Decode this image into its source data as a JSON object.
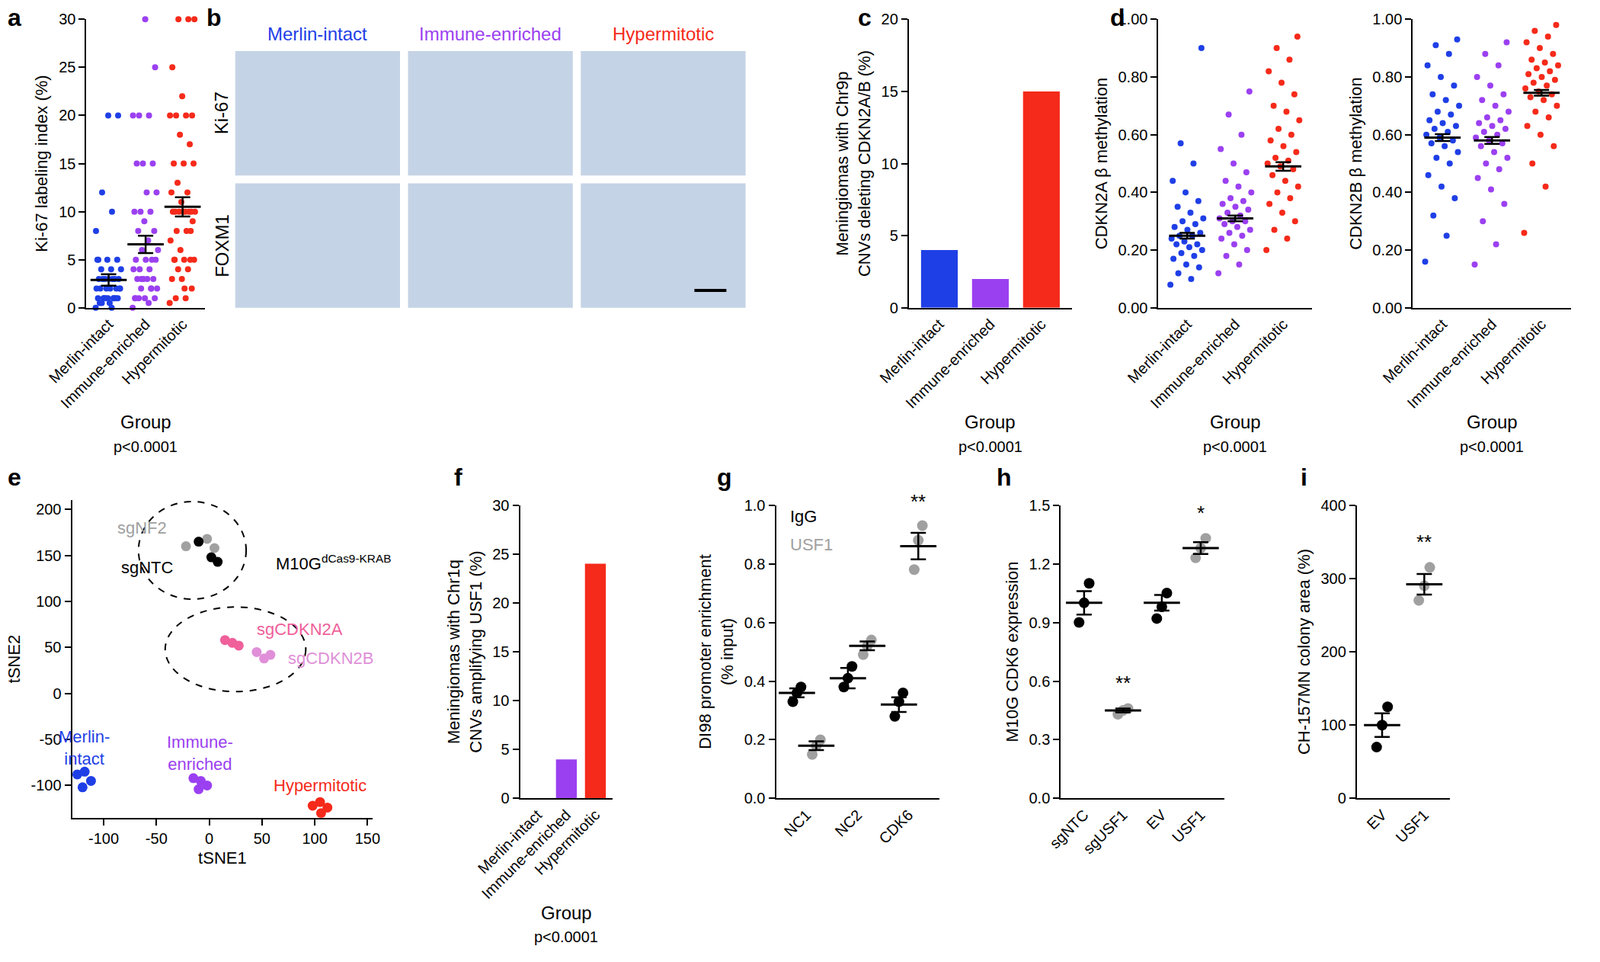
{
  "chart_data": [
    {
      "panel": "a",
      "type": "dot",
      "categories": [
        "Merlin-intact",
        "Immune-enriched",
        "Hypermitotic"
      ],
      "colors": [
        "#1f3fe6",
        "#9b40f0",
        "#f52a1a"
      ],
      "ylabel": "Ki-67 labeling index (%)",
      "xlabel": "Group",
      "note": "p<0.0001",
      "ylim": [
        0,
        30
      ],
      "yticks": [
        0,
        5,
        10,
        15,
        20,
        25,
        30
      ],
      "grid": false,
      "values": [
        [
          0,
          0,
          0.5,
          1,
          1,
          1,
          1,
          1,
          2,
          2,
          2,
          2,
          2,
          2,
          3,
          3,
          3,
          3,
          3,
          3,
          3,
          4,
          4,
          4,
          5,
          5,
          5,
          1,
          1,
          2,
          0.5,
          0.5,
          1,
          1,
          8,
          10,
          12,
          20,
          20,
          5
        ],
        [
          0,
          0.5,
          1,
          1,
          1,
          1,
          2,
          2,
          2,
          3,
          3,
          3,
          3,
          4,
          4,
          4,
          5,
          5,
          5,
          5,
          6,
          6,
          7,
          8,
          8,
          9,
          10,
          10,
          10,
          12,
          12,
          15,
          15,
          15,
          20,
          20,
          20,
          25,
          30,
          1,
          2,
          3
        ],
        [
          0.5,
          1,
          1,
          2,
          3,
          3,
          4,
          4,
          5,
          5,
          5,
          5,
          6,
          7,
          8,
          8,
          9,
          10,
          10,
          10,
          10,
          10,
          10,
          10,
          10,
          11,
          12,
          12,
          13,
          15,
          15,
          15,
          17,
          18,
          20,
          20,
          20,
          20,
          22,
          25,
          30,
          30,
          30,
          2,
          5,
          8
        ]
      ],
      "mean": [
        2.9,
        6.6,
        10.5
      ],
      "sem": [
        0.6,
        0.9,
        1.0
      ]
    },
    {
      "panel": "b",
      "type": "image_grid",
      "columns": [
        "Merlin-intact",
        "Immune-enriched",
        "Hypermitotic"
      ],
      "colors": [
        "#1f3fe6",
        "#9b40f0",
        "#f52a1a"
      ],
      "rows": [
        "Ki-67",
        "FOXM1"
      ]
    },
    {
      "panel": "c",
      "type": "bar",
      "categories": [
        "Merlin-intact",
        "Immune-enriched",
        "Hypermitotic"
      ],
      "colors": [
        "#1f3fe6",
        "#9b40f0",
        "#f52a1a"
      ],
      "values": [
        4,
        2,
        15
      ],
      "ylabel": [
        "Meningiomas with Chr9p",
        "CNVs deleting CDKN2A/B (%)"
      ],
      "xlabel": "Group",
      "note": "p<0.0001",
      "ylim": [
        0,
        20
      ],
      "yticks": [
        0,
        5,
        10,
        15,
        20
      ],
      "grid": false
    },
    {
      "panel": "d",
      "type": "dot",
      "categories": [
        "Merlin-intact",
        "Immune-enriched",
        "Hypermitotic"
      ],
      "colors": [
        "#1f3fe6",
        "#9b40f0",
        "#f52a1a"
      ],
      "ylabel": "CDKN2A β methylation",
      "xlabel": "Group",
      "note": "p<0.0001",
      "ylim": [
        0,
        1
      ],
      "yticks": [
        {
          "value": 0,
          "label": "0.00"
        },
        {
          "value": 0.2,
          "label": "0.20"
        },
        {
          "value": 0.4,
          "label": "0.40"
        },
        {
          "value": 0.6,
          "label": "0.60"
        },
        {
          "value": 0.8,
          "label": "0.80"
        },
        {
          "value": 1,
          "label": "1.00"
        }
      ],
      "grid": false,
      "values": [
        [
          0.08,
          0.1,
          0.12,
          0.14,
          0.15,
          0.17,
          0.18,
          0.19,
          0.2,
          0.21,
          0.22,
          0.22,
          0.23,
          0.24,
          0.25,
          0.25,
          0.26,
          0.27,
          0.28,
          0.29,
          0.3,
          0.31,
          0.33,
          0.35,
          0.37,
          0.4,
          0.44,
          0.5,
          0.57,
          0.9
        ],
        [
          0.12,
          0.15,
          0.18,
          0.2,
          0.22,
          0.24,
          0.25,
          0.26,
          0.27,
          0.28,
          0.29,
          0.3,
          0.3,
          0.31,
          0.32,
          0.33,
          0.34,
          0.35,
          0.36,
          0.37,
          0.38,
          0.4,
          0.42,
          0.44,
          0.47,
          0.5,
          0.55,
          0.6,
          0.67,
          0.75
        ],
        [
          0.2,
          0.24,
          0.27,
          0.3,
          0.33,
          0.36,
          0.38,
          0.4,
          0.42,
          0.44,
          0.46,
          0.48,
          0.49,
          0.5,
          0.51,
          0.52,
          0.54,
          0.56,
          0.58,
          0.6,
          0.62,
          0.65,
          0.68,
          0.7,
          0.74,
          0.78,
          0.82,
          0.86,
          0.9,
          0.94
        ]
      ],
      "mean": [
        0.25,
        0.31,
        0.49
      ],
      "sem": [
        0.01,
        0.01,
        0.015
      ]
    },
    {
      "type": "dot",
      "categories": [
        "Merlin-intact",
        "Immune-enriched",
        "Hypermitotic"
      ],
      "colors": [
        "#1f3fe6",
        "#9b40f0",
        "#f52a1a"
      ],
      "ylabel": "CDKN2B β methylation",
      "xlabel": "Group",
      "note": "p<0.0001",
      "ylim": [
        0,
        1
      ],
      "yticks": [
        {
          "value": 0,
          "label": "0.00"
        },
        {
          "value": 0.2,
          "label": "0.20"
        },
        {
          "value": 0.4,
          "label": "0.40"
        },
        {
          "value": 0.6,
          "label": "0.60"
        },
        {
          "value": 0.8,
          "label": "0.80"
        },
        {
          "value": 1,
          "label": "1.00"
        }
      ],
      "grid": false,
      "values": [
        [
          0.16,
          0.25,
          0.32,
          0.38,
          0.42,
          0.46,
          0.5,
          0.52,
          0.54,
          0.56,
          0.57,
          0.58,
          0.59,
          0.6,
          0.61,
          0.62,
          0.63,
          0.64,
          0.65,
          0.67,
          0.68,
          0.7,
          0.72,
          0.74,
          0.77,
          0.8,
          0.84,
          0.88,
          0.91,
          0.93
        ],
        [
          0.15,
          0.22,
          0.3,
          0.36,
          0.41,
          0.45,
          0.48,
          0.5,
          0.52,
          0.54,
          0.56,
          0.57,
          0.58,
          0.59,
          0.6,
          0.61,
          0.62,
          0.63,
          0.64,
          0.65,
          0.66,
          0.68,
          0.7,
          0.72,
          0.74,
          0.77,
          0.8,
          0.84,
          0.88,
          0.92
        ],
        [
          0.26,
          0.42,
          0.5,
          0.56,
          0.6,
          0.63,
          0.66,
          0.68,
          0.7,
          0.72,
          0.73,
          0.74,
          0.75,
          0.76,
          0.77,
          0.78,
          0.79,
          0.8,
          0.81,
          0.82,
          0.83,
          0.84,
          0.85,
          0.86,
          0.88,
          0.9,
          0.92,
          0.94,
          0.96,
          0.98
        ]
      ],
      "mean": [
        0.59,
        0.58,
        0.745
      ],
      "sem": [
        0.012,
        0.012,
        0.01
      ]
    },
    {
      "panel": "e",
      "type": "scatter",
      "xlabel": "tSNE1",
      "ylabel": "tSNE2",
      "xlim": [
        -130,
        155
      ],
      "xticks": [
        -100,
        -50,
        0,
        50,
        100,
        150
      ],
      "ylim": [
        -135,
        210
      ],
      "yticks": [
        -100,
        -50,
        0,
        50,
        100,
        150,
        200
      ],
      "grid": false,
      "series": [
        {
          "name": "Merlin-intact",
          "color": "#1f3fe6",
          "x": [
            -125,
            -118,
            -112,
            -120
          ],
          "y": [
            -88,
            -85,
            -95,
            -102
          ]
        },
        {
          "name": "Immune-enriched",
          "color": "#9b40f0",
          "x": [
            -15,
            -8,
            -2,
            -10
          ],
          "y": [
            -92,
            -95,
            -100,
            -104
          ]
        },
        {
          "name": "Hypermitotic",
          "color": "#f52a1a",
          "x": [
            98,
            105,
            112,
            106
          ],
          "y": [
            -122,
            -118,
            -124,
            -130
          ]
        },
        {
          "name": "sgNF2",
          "color": "#a0a0a0",
          "x": [
            -22,
            -2,
            5
          ],
          "y": [
            160,
            168,
            158
          ]
        },
        {
          "name": "sgNTC",
          "color": "#000000",
          "x": [
            -10,
            2,
            8
          ],
          "y": [
            165,
            148,
            143
          ]
        },
        {
          "name": "sgCDKN2A",
          "color": "#f0609a",
          "x": [
            15,
            22,
            28
          ],
          "y": [
            58,
            55,
            52
          ]
        },
        {
          "name": "sgCDKN2B",
          "color": "#e08fd8",
          "x": [
            45,
            52,
            58
          ],
          "y": [
            45,
            38,
            42
          ]
        }
      ],
      "annotations": [
        {
          "text": "M10G",
          "superscript": "dCas9-KRAB",
          "x": 62,
          "y": 142
        }
      ]
    },
    {
      "panel": "f",
      "type": "bar",
      "categories": [
        "Merlin-intact",
        "Immune-enriched",
        "Hypermitotic"
      ],
      "colors": [
        "#1f3fe6",
        "#9b40f0",
        "#f52a1a"
      ],
      "values": [
        0,
        4,
        24
      ],
      "ylabel": [
        "Meningiomas with Chr1q",
        "CNVs amplifying USF1 (%)"
      ],
      "xlabel": "Group",
      "note": "p<0.0001",
      "ylim": [
        0,
        30
      ],
      "yticks": [
        0,
        5,
        10,
        15,
        20,
        25,
        30
      ],
      "grid": false
    },
    {
      "panel": "g",
      "type": "dot_grouped",
      "categories": [
        "NC1",
        "NC2",
        "CDK6"
      ],
      "ylabel": [
        "DI98 promoter enrichment",
        "(% input)"
      ],
      "ylim": [
        0,
        1
      ],
      "yticks": [
        {
          "value": 0,
          "label": "0.0"
        },
        {
          "value": 0.2,
          "label": "0.2"
        },
        {
          "value": 0.4,
          "label": "0.4"
        },
        {
          "value": 0.6,
          "label": "0.6"
        },
        {
          "value": 0.8,
          "label": "0.8"
        },
        {
          "value": 1,
          "label": "1.0"
        }
      ],
      "grid": false,
      "series": [
        {
          "name": "IgG",
          "color": "#000000",
          "values": [
            [
              0.33,
              0.36,
              0.38
            ],
            [
              0.38,
              0.41,
              0.45
            ],
            [
              0.28,
              0.33,
              0.36
            ]
          ],
          "mean": [
            0.36,
            0.41,
            0.32
          ],
          "sem": [
            0.015,
            0.035,
            0.025
          ],
          "significance": [
            null,
            null,
            null
          ]
        },
        {
          "name": "USF1",
          "color": "#a0a0a0",
          "values": [
            [
              0.15,
              0.18,
              0.2
            ],
            [
              0.49,
              0.52,
              0.54
            ],
            [
              0.78,
              0.88,
              0.93
            ]
          ],
          "mean": [
            0.18,
            0.52,
            0.86
          ],
          "sem": [
            0.015,
            0.015,
            0.045
          ],
          "significance": [
            null,
            null,
            "**"
          ]
        }
      ]
    },
    {
      "panel": "h",
      "type": "dot",
      "categories": [
        "sgNTC",
        "sgUSF1",
        "EV",
        "USF1"
      ],
      "colors": [
        "#000000",
        "#a0a0a0",
        "#000000",
        "#a0a0a0"
      ],
      "ylabel": "M10G CDK6 expression",
      "ylim": [
        0,
        1.5
      ],
      "yticks": [
        {
          "value": 0,
          "label": "0.0"
        },
        {
          "value": 0.3,
          "label": "0.3"
        },
        {
          "value": 0.6,
          "label": "0.6"
        },
        {
          "value": 0.9,
          "label": "0.9"
        },
        {
          "value": 1.2,
          "label": "1.2"
        },
        {
          "value": 1.5,
          "label": "1.5"
        }
      ],
      "grid": false,
      "values": [
        [
          0.9,
          1.0,
          1.1
        ],
        [
          0.43,
          0.45,
          0.46
        ],
        [
          0.92,
          0.98,
          1.05
        ],
        [
          1.23,
          1.28,
          1.33
        ]
      ],
      "mean": [
        1.0,
        0.45,
        1.0,
        1.28
      ],
      "sem": [
        0.06,
        0.01,
        0.04,
        0.03
      ],
      "significance": [
        null,
        "**",
        null,
        "*"
      ]
    },
    {
      "panel": "i",
      "type": "dot",
      "categories": [
        "EV",
        "USF1"
      ],
      "colors": [
        "#000000",
        "#a0a0a0"
      ],
      "ylabel": "CH-157MN colony area (%)",
      "ylim": [
        0,
        400
      ],
      "yticks": [
        0,
        100,
        200,
        300,
        400
      ],
      "grid": false,
      "values": [
        [
          70,
          100,
          125
        ],
        [
          270,
          290,
          315
        ]
      ],
      "mean": [
        100,
        292
      ],
      "sem": [
        16,
        14
      ],
      "significance": [
        null,
        "**"
      ]
    }
  ]
}
